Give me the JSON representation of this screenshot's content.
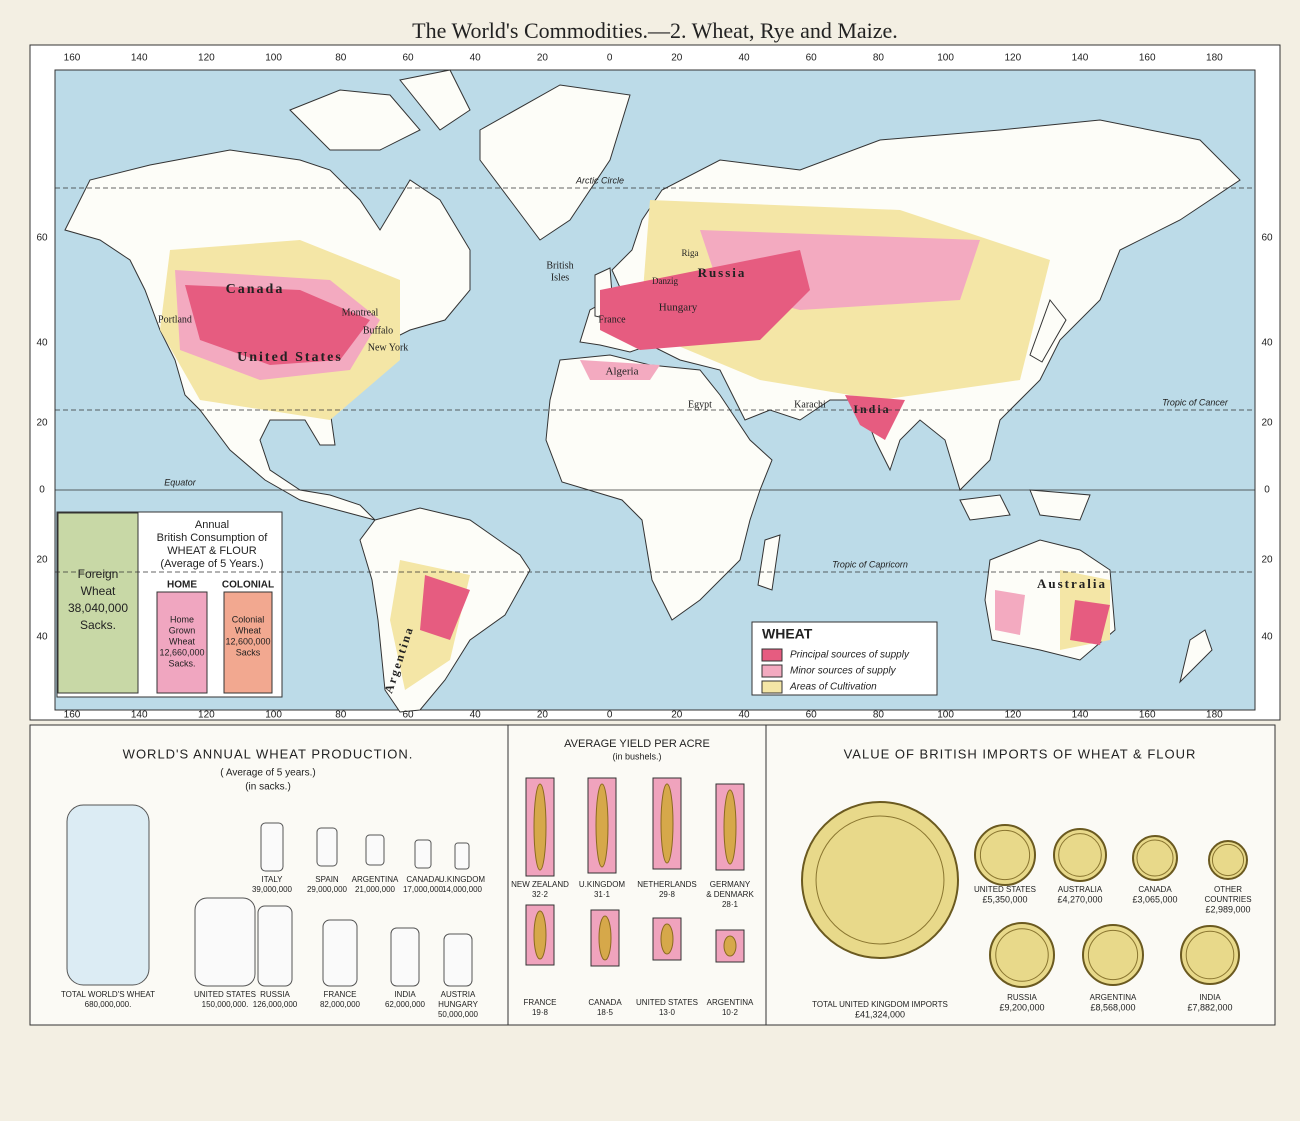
{
  "title": "The World's Commodities.—2. Wheat, Rye and Maize.",
  "map": {
    "longitude_top": [
      160,
      140,
      120,
      100,
      80,
      60,
      40,
      20,
      0,
      20,
      40,
      60,
      80,
      100,
      120,
      140,
      160,
      180
    ],
    "longitude_bottom": [
      160,
      140,
      120,
      100,
      80,
      60,
      40,
      20,
      0,
      20,
      40,
      60,
      80,
      100,
      120,
      140,
      160,
      180
    ],
    "latitude_left": [
      60,
      40,
      20,
      0,
      20,
      40
    ],
    "latitude_right": [
      60,
      40,
      20,
      0,
      20,
      40
    ],
    "lines": [
      "Arctic Circle",
      "Tropic of Cancer",
      "Equator",
      "Tropic of Capricorn"
    ],
    "places": [
      [
        "Canada"
      ],
      [
        "United States"
      ],
      [
        "Portland"
      ],
      [
        "Montreal"
      ],
      [
        "Buffalo"
      ],
      [
        "New York"
      ],
      [
        "British",
        "Isles"
      ],
      [
        "France"
      ],
      [
        "Hungary"
      ],
      [
        "Russia"
      ],
      [
        "Riga"
      ],
      [
        "Danzig"
      ],
      [
        "Algeria"
      ],
      [
        "Egypt"
      ],
      [
        "Karachi"
      ],
      [
        "India"
      ],
      [
        "Australia"
      ],
      [
        "Argentina"
      ]
    ]
  },
  "map_legend": {
    "title": "WHEAT",
    "items": [
      "Principal sources of supply",
      "Minor sources of supply",
      "Areas of Cultivation"
    ]
  },
  "consumption": {
    "heading": [
      "Annual",
      "British Consumption of",
      "WHEAT & FLOUR",
      "(Average of 5 Years.)"
    ],
    "home_heading": "HOME",
    "colonial_heading": "COLONIAL",
    "foreign": [
      "Foreign",
      "Wheat",
      "38,040,000",
      "Sacks."
    ],
    "home": [
      "Home",
      "Grown",
      "Wheat",
      "12,660,000",
      "Sacks."
    ],
    "colonial": [
      "Colonial",
      "Wheat",
      "12,600,000",
      "Sacks"
    ]
  },
  "production": {
    "title": "WORLD'S ANNUAL WHEAT PRODUCTION.",
    "subtitle": [
      "( Average of 5 years.)",
      "(in sacks.)"
    ],
    "items": [
      {
        "name": [
          "TOTAL WORLD'S WHEAT"
        ],
        "value": "680,000,000."
      },
      {
        "name": [
          "UNITED STATES"
        ],
        "value": "150,000,000."
      },
      {
        "name": [
          "RUSSIA"
        ],
        "value": "126,000,000"
      },
      {
        "name": [
          "FRANCE"
        ],
        "value": "82,000,000"
      },
      {
        "name": [
          "INDIA"
        ],
        "value": "62,000,000"
      },
      {
        "name": [
          "AUSTRIA",
          "HUNGARY"
        ],
        "value": "50,000,000"
      },
      {
        "name": [
          "ITALY"
        ],
        "value": "39,000,000"
      },
      {
        "name": [
          "SPAIN"
        ],
        "value": "29,000,000"
      },
      {
        "name": [
          "ARGENTINA"
        ],
        "value": "21,000,000"
      },
      {
        "name": [
          "CANADA"
        ],
        "value": "17,000,000"
      },
      {
        "name": [
          "U.KINGDOM"
        ],
        "value": "14,000,000"
      }
    ]
  },
  "yield": {
    "title": "AVERAGE YIELD PER ACRE",
    "subtitle": "(in bushels.)",
    "items": [
      {
        "name": [
          "NEW ZEALAND"
        ],
        "value": "32·2"
      },
      {
        "name": [
          "U.KINGDOM"
        ],
        "value": "31·1"
      },
      {
        "name": [
          "NETHERLANDS"
        ],
        "value": "29·8"
      },
      {
        "name": [
          "GERMANY",
          "& DENMARK"
        ],
        "value": "28·1"
      },
      {
        "name": [
          "FRANCE"
        ],
        "value": "19·8"
      },
      {
        "name": [
          "CANADA"
        ],
        "value": "18·5"
      },
      {
        "name": [
          "UNITED STATES"
        ],
        "value": "13·0"
      },
      {
        "name": [
          "ARGENTINA"
        ],
        "value": "10·2"
      }
    ]
  },
  "imports": {
    "title": "VALUE OF BRITISH IMPORTS OF WHEAT & FLOUR",
    "items": [
      {
        "name": [
          "TOTAL UNITED KINGDOM IMPORTS"
        ],
        "value": "£41,324,000"
      },
      {
        "name": [
          "UNITED STATES"
        ],
        "value": "£5,350,000"
      },
      {
        "name": [
          "AUSTRALIA"
        ],
        "value": "£4,270,000"
      },
      {
        "name": [
          "CANADA"
        ],
        "value": "£3,065,000"
      },
      {
        "name": [
          "OTHER",
          "COUNTRIES"
        ],
        "value": "£2,989,000"
      },
      {
        "name": [
          "RUSSIA"
        ],
        "value": "£9,200,000"
      },
      {
        "name": [
          "ARGENTINA"
        ],
        "value": "£8,568,000"
      },
      {
        "name": [
          "INDIA"
        ],
        "value": "£7,882,000"
      }
    ]
  }
}
